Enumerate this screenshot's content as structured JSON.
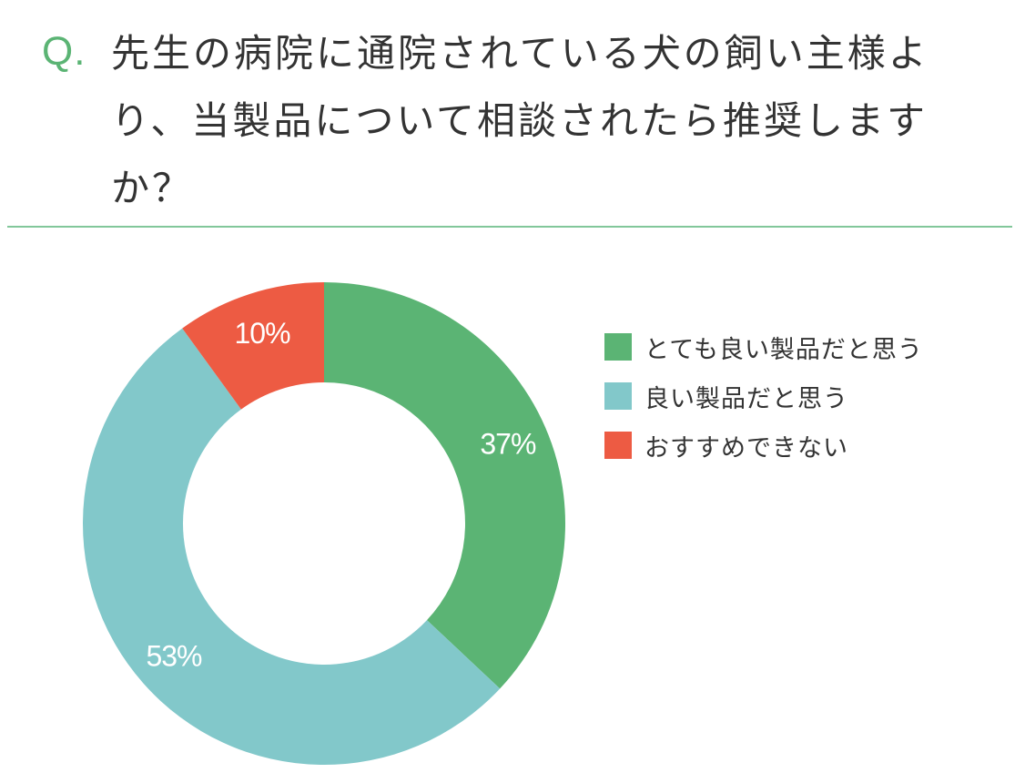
{
  "question": {
    "prefix": "Q.",
    "text": "先生の病院に通院されている犬の飼い主様より、当製品について相談されたら推奨しますか？"
  },
  "colors": {
    "accent": "#5bb474",
    "divider": "#82c79a"
  },
  "chart_data": {
    "type": "pie",
    "title": "",
    "donut": true,
    "legend_position": "right",
    "series": [
      {
        "name": "とても良い製品だと思う",
        "value": 37,
        "label": "37%",
        "color": "#5bb474"
      },
      {
        "name": "良い製品だと思う",
        "value": 53,
        "label": "53%",
        "color": "#82c8ca"
      },
      {
        "name": "おすすめできない",
        "value": 10,
        "label": "10%",
        "color": "#ed5b43"
      }
    ]
  }
}
